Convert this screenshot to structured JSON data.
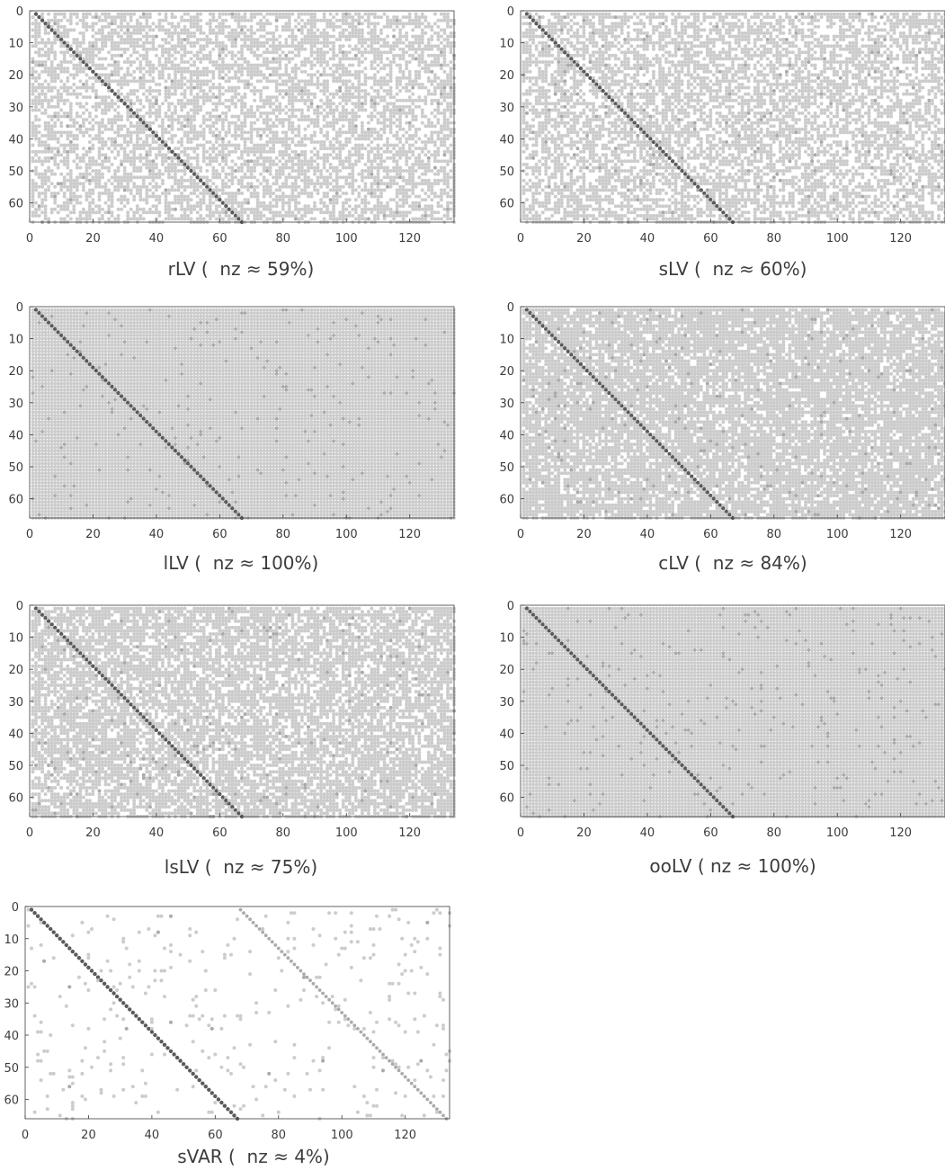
{
  "chart_data": [
    {
      "type": "heatmap",
      "subtype": "sparsity-pattern",
      "caption": "rLV (  nz ≈ 59%)",
      "method": "rLV",
      "nz_percent": 59,
      "rows": 66,
      "cols": 134,
      "xlim": [
        0,
        134
      ],
      "ylim": [
        0,
        66
      ],
      "y_direction": "top-down",
      "xticks": [
        0,
        20,
        40,
        60,
        80,
        100,
        120
      ],
      "yticks": [
        0,
        10,
        20,
        30,
        40,
        50,
        60
      ],
      "diagonal": "strong",
      "offdiag_density": 0.59,
      "grid": false
    },
    {
      "type": "heatmap",
      "subtype": "sparsity-pattern",
      "caption": "sLV (  nz ≈ 60%)",
      "method": "sLV",
      "nz_percent": 60,
      "rows": 66,
      "cols": 134,
      "xlim": [
        0,
        134
      ],
      "ylim": [
        0,
        66
      ],
      "y_direction": "top-down",
      "xticks": [
        0,
        20,
        40,
        60,
        80,
        100,
        120
      ],
      "yticks": [
        0,
        10,
        20,
        30,
        40,
        50,
        60
      ],
      "diagonal": "strong",
      "offdiag_density": 0.6,
      "grid": false
    },
    {
      "type": "heatmap",
      "subtype": "sparsity-pattern",
      "caption": "lLV (  nz ≈ 100%)",
      "method": "lLV",
      "nz_percent": 100,
      "rows": 66,
      "cols": 134,
      "xlim": [
        0,
        134
      ],
      "ylim": [
        0,
        66
      ],
      "y_direction": "top-down",
      "xticks": [
        0,
        20,
        40,
        60,
        80,
        100,
        120
      ],
      "yticks": [
        0,
        10,
        20,
        30,
        40,
        50,
        60
      ],
      "diagonal": "strong",
      "offdiag_density": 1.0,
      "grid": false
    },
    {
      "type": "heatmap",
      "subtype": "sparsity-pattern",
      "caption": "cLV (  nz ≈ 84%)",
      "method": "cLV",
      "nz_percent": 84,
      "rows": 66,
      "cols": 134,
      "xlim": [
        0,
        134
      ],
      "ylim": [
        0,
        66
      ],
      "y_direction": "top-down",
      "xticks": [
        0,
        20,
        40,
        60,
        80,
        100,
        120
      ],
      "yticks": [
        0,
        10,
        20,
        30,
        40,
        50,
        60
      ],
      "diagonal": "strong",
      "offdiag_density": 0.84,
      "grid": false
    },
    {
      "type": "heatmap",
      "subtype": "sparsity-pattern",
      "caption": "lsLV (  nz ≈ 75%)",
      "method": "lsLV",
      "nz_percent": 75,
      "rows": 66,
      "cols": 134,
      "xlim": [
        0,
        134
      ],
      "ylim": [
        0,
        66
      ],
      "y_direction": "top-down",
      "xticks": [
        0,
        20,
        40,
        60,
        80,
        100,
        120
      ],
      "yticks": [
        0,
        10,
        20,
        30,
        40,
        50,
        60
      ],
      "diagonal": "strong",
      "offdiag_density": 0.75,
      "grid": false
    },
    {
      "type": "heatmap",
      "subtype": "sparsity-pattern",
      "caption": "ooLV ( nz ≈ 100%)",
      "method": "ooLV",
      "nz_percent": 100,
      "rows": 66,
      "cols": 134,
      "xlim": [
        0,
        134
      ],
      "ylim": [
        0,
        66
      ],
      "y_direction": "top-down",
      "xticks": [
        0,
        20,
        40,
        60,
        80,
        100,
        120
      ],
      "yticks": [
        0,
        10,
        20,
        30,
        40,
        50,
        60
      ],
      "diagonal": "strong",
      "offdiag_density": 1.0,
      "grid": false
    },
    {
      "type": "heatmap",
      "subtype": "sparsity-pattern",
      "caption": "sVAR (  nz ≈ 4%)",
      "method": "sVAR",
      "nz_percent": 4,
      "rows": 66,
      "cols": 134,
      "xlim": [
        0,
        134
      ],
      "ylim": [
        0,
        66
      ],
      "y_direction": "top-down",
      "xticks": [
        0,
        20,
        40,
        60,
        80,
        100,
        120
      ],
      "yticks": [
        0,
        10,
        20,
        30,
        40,
        50,
        60
      ],
      "diagonal": "strong",
      "secondary_diagonal_offset": 67,
      "offdiag_density": 0.04,
      "grid": false
    }
  ],
  "colors": {
    "axis": "#3c3c3c",
    "diagonal": "#5a5a5a",
    "nonzero": "#cccccc",
    "nonzero_dark": "#aaaaaa"
  }
}
